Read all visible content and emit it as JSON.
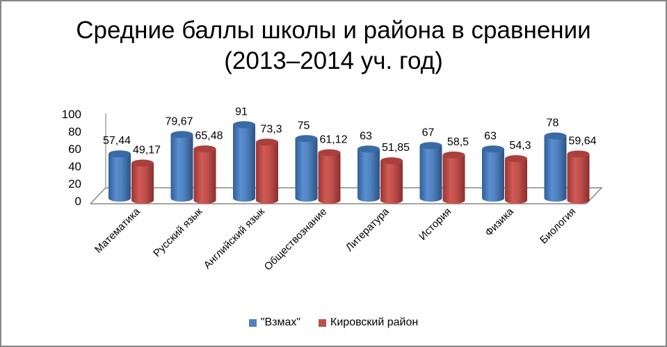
{
  "chart_data": {
    "type": "bar",
    "style": "3d-cylinder",
    "title": "Средние баллы школы и района в сравнении",
    "subtitle": "(2013–2014 уч. год)",
    "xlabel": "",
    "ylabel": "",
    "ylim": [
      0,
      100
    ],
    "yticks": [
      0,
      20,
      40,
      60,
      80,
      100
    ],
    "categories": [
      "Математика",
      "Русский язык",
      "Английский язык",
      "Обществознание",
      "Литература",
      "История",
      "Физика",
      "Биология"
    ],
    "series": [
      {
        "name": "\"Взмах\"",
        "color": "#4F81BD",
        "values": [
          57.44,
          79.67,
          91,
          75,
          63,
          67,
          63,
          78
        ],
        "labels": [
          "57,44",
          "79,67",
          "91",
          "75",
          "63",
          "67",
          "63",
          "78"
        ]
      },
      {
        "name": "Кировский район",
        "color": "#C0504D",
        "values": [
          49.17,
          65.48,
          73.3,
          61.12,
          51.85,
          58.5,
          54.3,
          59.64
        ],
        "labels": [
          "49,17",
          "65,48",
          "73,3",
          "61,12",
          "51,85",
          "58,5",
          "54,3",
          "59,64"
        ]
      }
    ],
    "legend_position": "bottom",
    "grid": false
  }
}
